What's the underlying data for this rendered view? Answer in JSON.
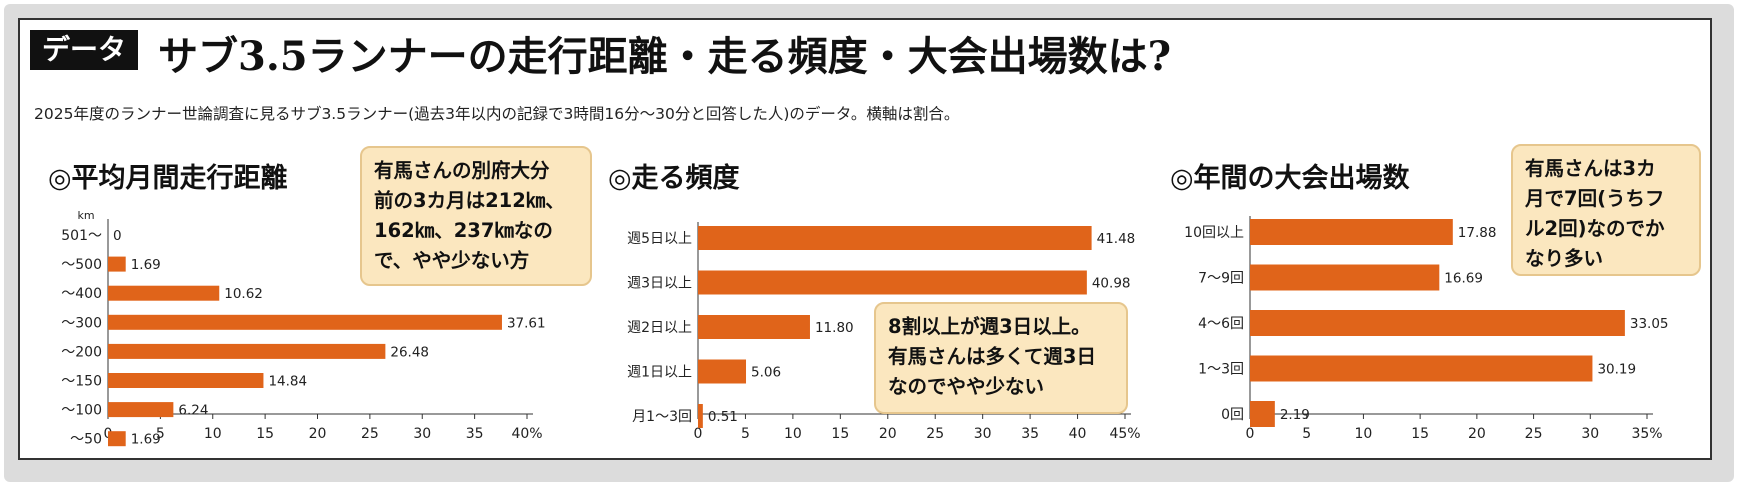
{
  "header": {
    "tag": "データ",
    "title": "サブ3.5ランナーの走行距離・走る頻度・大会出場数は?",
    "subtitle": "2025年度のランナー世論調査に見るサブ3.5ランナー(過去3年以内の記録で3時間16分〜30分と回答した人)のデータ。横軸は割合。"
  },
  "colors": {
    "bar": "#e0641a",
    "callout_bg": "#fbe7bf",
    "callout_border": "#e6c68d"
  },
  "chart_data": [
    {
      "type": "bar",
      "orientation": "horizontal",
      "title": "◎平均月間走行距離",
      "unit_label": "km",
      "categories": [
        "501〜",
        "〜500",
        "〜400",
        "〜300",
        "〜200",
        "〜150",
        "〜100",
        "〜50"
      ],
      "values": [
        0,
        1.69,
        10.62,
        37.61,
        26.48,
        14.84,
        6.24,
        1.69
      ],
      "value_labels": [
        "0",
        "1.69",
        "10.62",
        "37.61",
        "26.48",
        "14.84",
        "6.24",
        "1.69"
      ],
      "xlim": [
        0,
        40
      ],
      "xticks": [
        "0",
        "5",
        "10",
        "15",
        "20",
        "25",
        "30",
        "35",
        "40%"
      ],
      "callout_lines": [
        "有馬さんの別府大分",
        "前の3カ月は212㎞、",
        "162㎞、237㎞なの",
        "で、やや少ない方"
      ]
    },
    {
      "type": "bar",
      "orientation": "horizontal",
      "title": "◎走る頻度",
      "categories": [
        "週5日以上",
        "週3日以上",
        "週2日以上",
        "週1日以上",
        "月1〜3回"
      ],
      "values": [
        41.48,
        40.98,
        11.8,
        5.06,
        0.51
      ],
      "value_labels": [
        "41.48",
        "40.98",
        "11.80",
        "5.06",
        "0.51"
      ],
      "xlim": [
        0,
        45
      ],
      "xticks": [
        "0",
        "5",
        "10",
        "15",
        "20",
        "25",
        "30",
        "35",
        "40",
        "45%"
      ],
      "callout_lines": [
        "8割以上が週3日以上。",
        "有馬さんは多くて週3日",
        "なのでやや少ない"
      ]
    },
    {
      "type": "bar",
      "orientation": "horizontal",
      "title": "◎年間の大会出場数",
      "categories": [
        "10回以上",
        "7〜9回",
        "4〜6回",
        "1〜3回",
        "0回"
      ],
      "values": [
        17.88,
        16.69,
        33.05,
        30.19,
        2.19
      ],
      "value_labels": [
        "17.88",
        "16.69",
        "33.05",
        "30.19",
        "2.19"
      ],
      "xlim": [
        0,
        35
      ],
      "xticks": [
        "0",
        "5",
        "10",
        "15",
        "20",
        "25",
        "30",
        "35%"
      ],
      "callout_lines": [
        "有馬さんは3カ",
        "月で7回(うちフ",
        "ル2回)なのでか",
        "なり多い"
      ]
    }
  ]
}
